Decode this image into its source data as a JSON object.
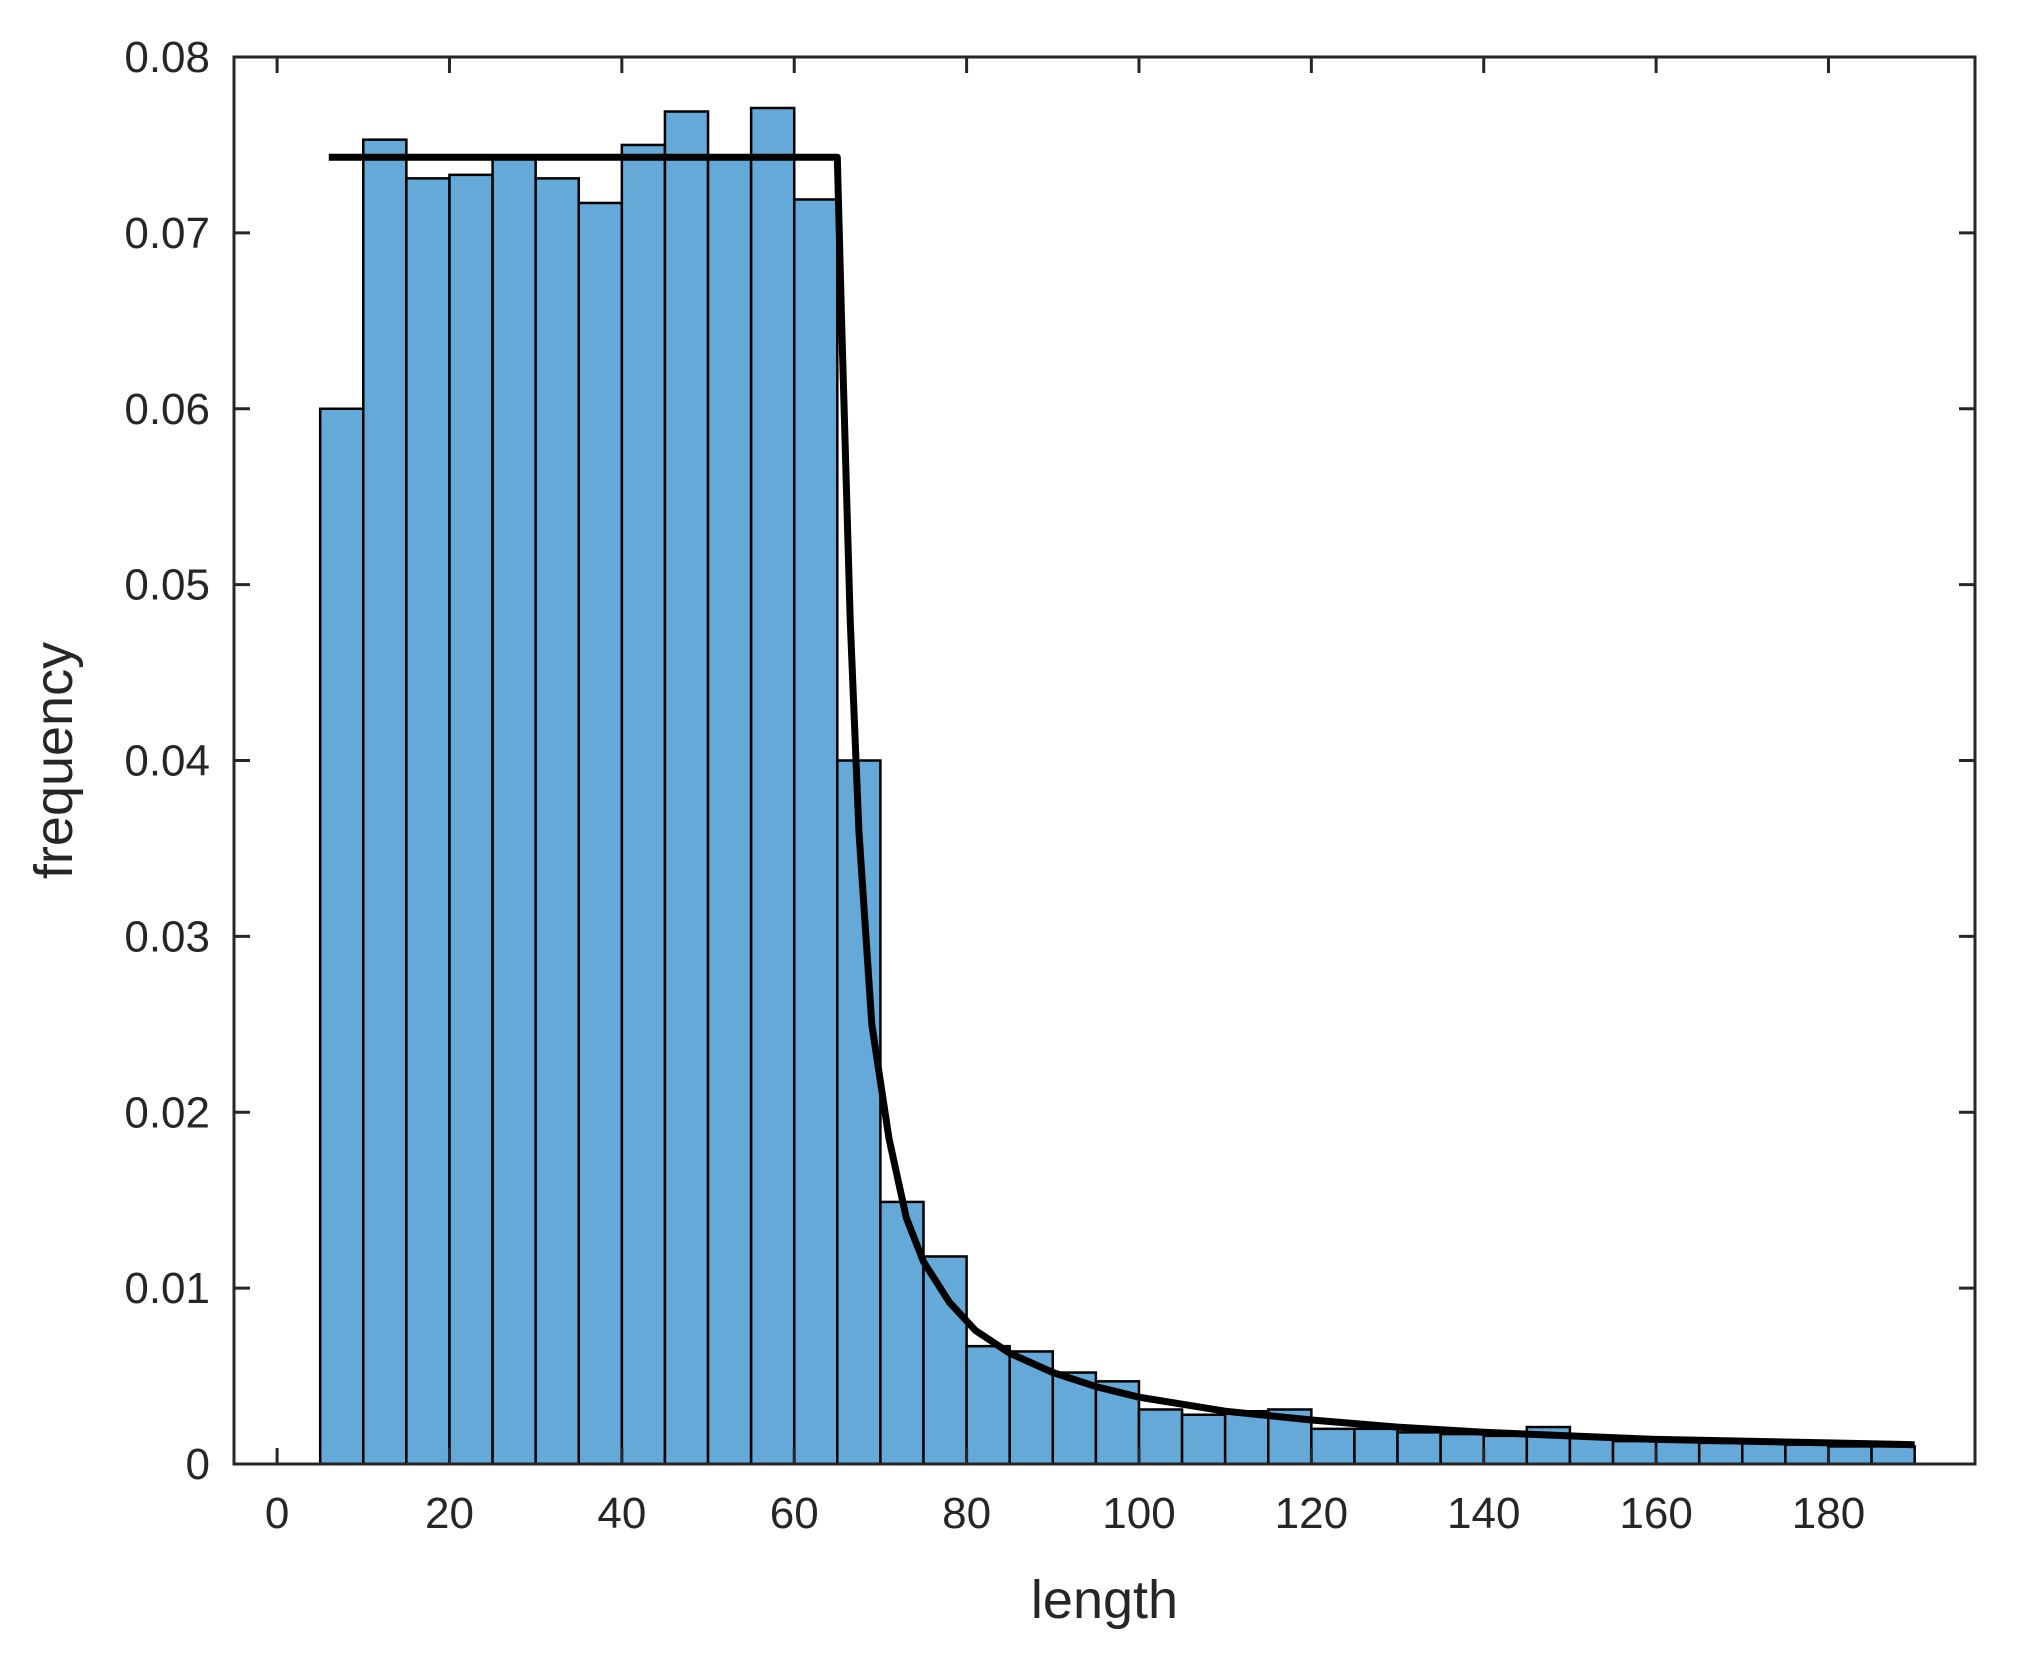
{
  "chart_data": {
    "type": "bar",
    "title": "",
    "xlabel": "length",
    "ylabel": "frequency",
    "xlim": [
      -5,
      197
    ],
    "ylim": [
      0,
      0.08
    ],
    "x_ticks": [
      0,
      20,
      40,
      60,
      80,
      100,
      120,
      140,
      160,
      180
    ],
    "y_ticks": [
      0,
      0.01,
      0.02,
      0.03,
      0.04,
      0.05,
      0.06,
      0.07,
      0.08
    ],
    "x_tick_labels": [
      "0",
      "20",
      "40",
      "60",
      "80",
      "100",
      "120",
      "140",
      "160",
      "180"
    ],
    "y_tick_labels": [
      "0",
      "0.01",
      "0.02",
      "0.03",
      "0.04",
      "0.05",
      "0.06",
      "0.07",
      "0.08"
    ],
    "grid": false,
    "bar_color": "#65a9d8",
    "edge_color": "#000000",
    "bin_edges": [
      5,
      10,
      15,
      20,
      25,
      30,
      35,
      40,
      45,
      50,
      55,
      60,
      65,
      70,
      75,
      80,
      85,
      90,
      95,
      100,
      105,
      110,
      115,
      120,
      125,
      130,
      135,
      140,
      145,
      150,
      155,
      160,
      165,
      170,
      175,
      180,
      185,
      190
    ],
    "values": [
      0.06,
      0.0753,
      0.0731,
      0.0733,
      0.0742,
      0.0731,
      0.0717,
      0.075,
      0.0769,
      0.0742,
      0.0771,
      0.0719,
      0.04,
      0.0149,
      0.0118,
      0.0067,
      0.0064,
      0.0052,
      0.0047,
      0.0031,
      0.0028,
      0.003,
      0.0031,
      0.002,
      0.002,
      0.0018,
      0.0017,
      0.0016,
      0.0021,
      0.0015,
      0.0013,
      0.0013,
      0.0012,
      0.0012,
      0.0011,
      0.001,
      0.001
    ],
    "fit_line": {
      "color": "#000000",
      "points": [
        [
          6,
          0.0743
        ],
        [
          20,
          0.0743
        ],
        [
          40,
          0.0743
        ],
        [
          60,
          0.0743
        ],
        [
          65,
          0.0743
        ],
        [
          65.5,
          0.065
        ],
        [
          66.5,
          0.048
        ],
        [
          67.5,
          0.036
        ],
        [
          69,
          0.025
        ],
        [
          71,
          0.0185
        ],
        [
          73,
          0.014
        ],
        [
          75,
          0.0115
        ],
        [
          78,
          0.0092
        ],
        [
          81,
          0.0076
        ],
        [
          85,
          0.0063
        ],
        [
          90,
          0.0052
        ],
        [
          95,
          0.0044
        ],
        [
          100,
          0.0038
        ],
        [
          110,
          0.003
        ],
        [
          120,
          0.0025
        ],
        [
          130,
          0.0021
        ],
        [
          140,
          0.0018
        ],
        [
          150,
          0.0016
        ],
        [
          160,
          0.0014
        ],
        [
          170,
          0.0013
        ],
        [
          180,
          0.0012
        ],
        [
          190,
          0.0011
        ]
      ]
    }
  }
}
